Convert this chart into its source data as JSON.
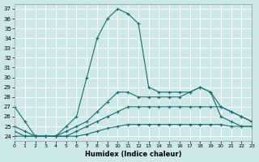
{
  "xlabel": "Humidex (Indice chaleur)",
  "bg_color": "#cce8e8",
  "grid_color": "#ffffff",
  "line_color": "#1a6e6e",
  "xlim": [
    0,
    23
  ],
  "ylim": [
    23.5,
    37.5
  ],
  "yticks": [
    24,
    25,
    26,
    27,
    28,
    29,
    30,
    31,
    32,
    33,
    34,
    35,
    36,
    37
  ],
  "xticks": [
    0,
    1,
    2,
    3,
    4,
    5,
    6,
    7,
    8,
    9,
    10,
    11,
    12,
    13,
    14,
    15,
    16,
    17,
    18,
    19,
    20,
    21,
    22,
    23
  ],
  "series": [
    [
      27.0,
      25.5,
      24.0,
      24.0,
      24.0,
      25.0,
      26.0,
      30.0,
      34.0,
      36.0,
      37.0,
      36.5,
      35.5,
      29.0,
      28.5,
      28.5,
      28.5,
      28.5,
      29.0,
      28.5,
      26.0,
      25.5,
      25.0,
      25.0
    ],
    [
      25.0,
      24.5,
      24.0,
      24.0,
      24.0,
      24.5,
      25.0,
      25.5,
      26.5,
      27.5,
      28.5,
      28.5,
      28.0,
      28.0,
      28.0,
      28.0,
      28.0,
      28.5,
      29.0,
      28.5,
      27.0,
      26.5,
      26.0,
      25.5
    ],
    [
      24.5,
      24.0,
      24.0,
      24.0,
      24.0,
      24.0,
      24.5,
      25.0,
      25.5,
      26.0,
      26.5,
      27.0,
      27.0,
      27.0,
      27.0,
      27.0,
      27.0,
      27.0,
      27.0,
      27.0,
      27.0,
      26.5,
      26.0,
      25.5
    ],
    [
      24.0,
      24.0,
      24.0,
      24.0,
      24.0,
      24.0,
      24.0,
      24.2,
      24.5,
      24.8,
      25.0,
      25.2,
      25.2,
      25.2,
      25.2,
      25.2,
      25.2,
      25.2,
      25.2,
      25.2,
      25.2,
      25.0,
      25.0,
      25.0
    ]
  ]
}
